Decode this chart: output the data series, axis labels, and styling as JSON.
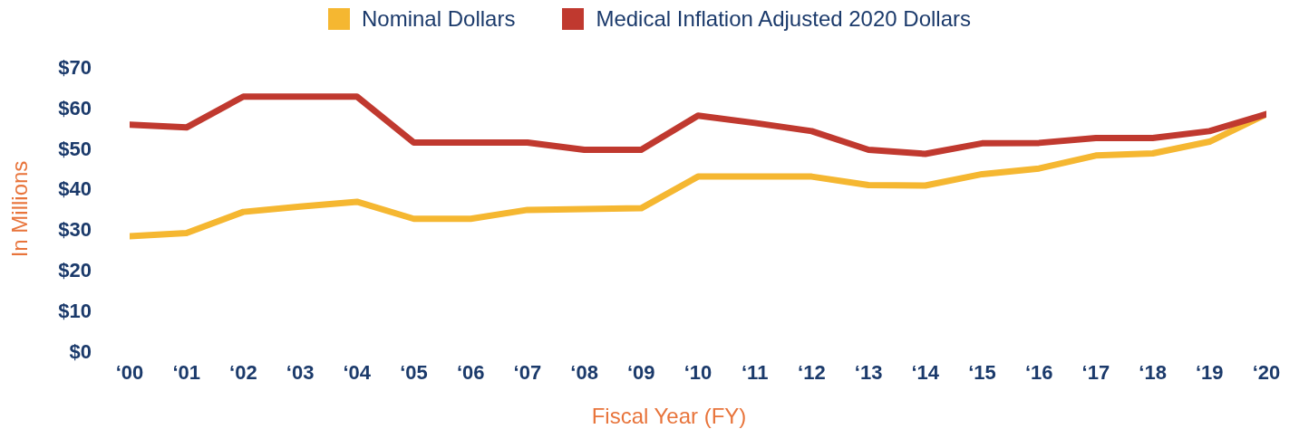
{
  "chart_data": {
    "type": "line",
    "xlabel": "Fiscal Year (FY)",
    "ylabel": "In Millions",
    "categories": [
      "‘00",
      "‘01",
      "‘02",
      "‘03",
      "‘04",
      "‘05",
      "‘06",
      "‘07",
      "‘08",
      "‘09",
      "‘10",
      "‘11",
      "‘12",
      "‘13",
      "‘14",
      "‘15",
      "‘16",
      "‘17",
      "‘18",
      "‘19",
      "‘20"
    ],
    "series": [
      {
        "name": "Nominal Dollars",
        "color": "#f5b731",
        "values": [
          28.3,
          29.1,
          34.3,
          35.6,
          36.8,
          32.6,
          32.6,
          34.8,
          35.0,
          35.2,
          43.0,
          43.0,
          43.0,
          40.9,
          40.8,
          43.6,
          45.0,
          48.2,
          48.7,
          51.6,
          58.4
        ]
      },
      {
        "name": "Medical Inflation Adjusted 2020 Dollars",
        "color": "#c0392f",
        "values": [
          55.8,
          55.1,
          62.7,
          62.7,
          62.7,
          51.4,
          51.4,
          51.4,
          49.6,
          49.6,
          58.0,
          56.2,
          54.2,
          49.6,
          48.6,
          51.2,
          51.3,
          52.5,
          52.5,
          54.2,
          58.4
        ]
      }
    ],
    "ylim": [
      0,
      70
    ],
    "yticks": [
      {
        "value": 0,
        "label": "$0"
      },
      {
        "value": 10,
        "label": "$10"
      },
      {
        "value": 20,
        "label": "$20"
      },
      {
        "value": 30,
        "label": "$30"
      },
      {
        "value": 40,
        "label": "$40"
      },
      {
        "value": 50,
        "label": "$50"
      },
      {
        "value": 60,
        "label": "$60"
      },
      {
        "value": 70,
        "label": "$70"
      }
    ],
    "legend": "top"
  }
}
